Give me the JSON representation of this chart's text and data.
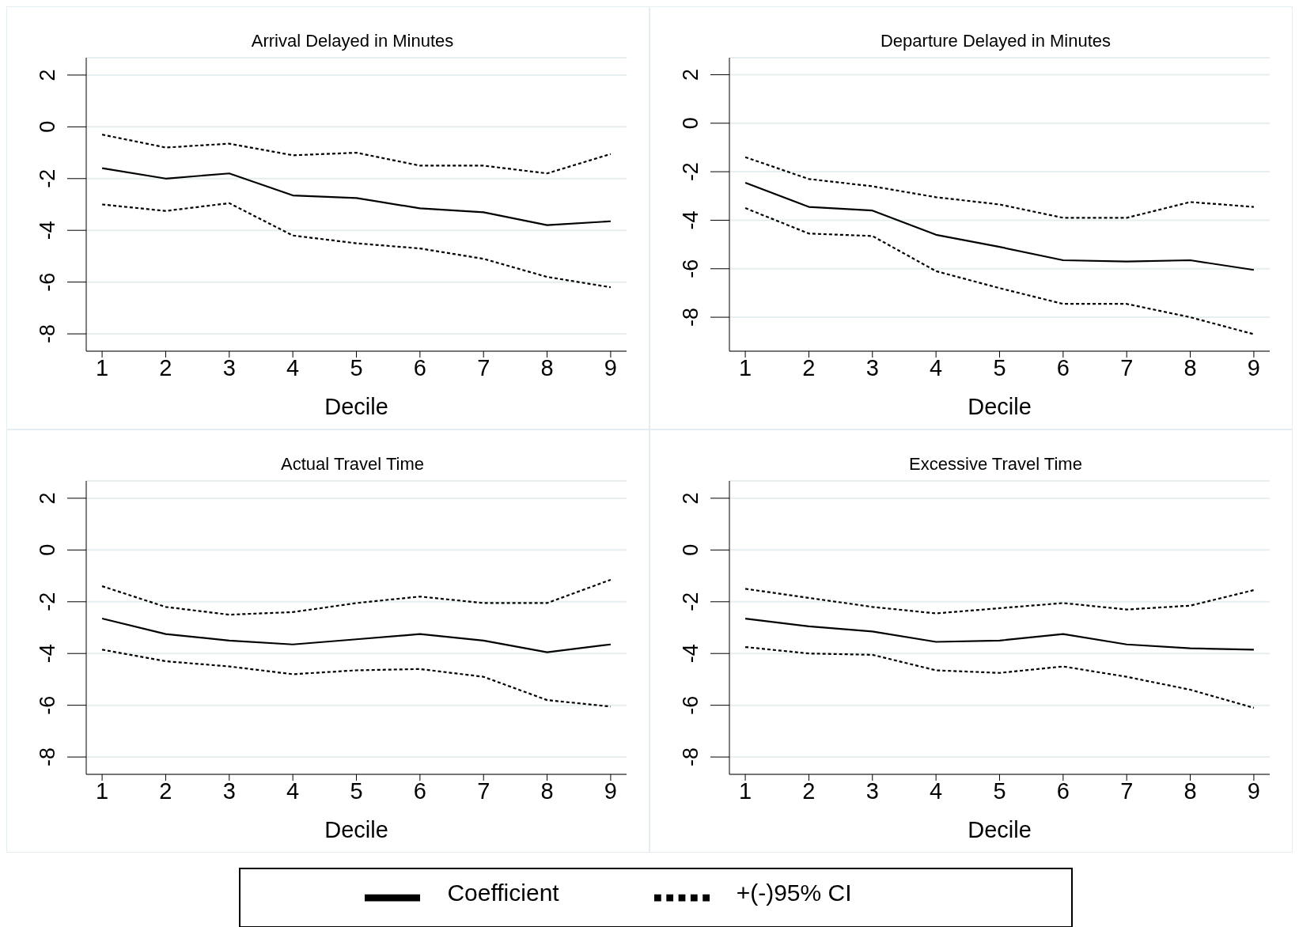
{
  "chart_data": [
    {
      "type": "line",
      "title": "Arrival Delayed in Minutes",
      "xlabel": "Decile",
      "x": [
        1,
        2,
        3,
        4,
        5,
        6,
        7,
        8,
        9
      ],
      "xlim": [
        0.75,
        9.25
      ],
      "xticks": [
        1,
        2,
        3,
        4,
        5,
        6,
        7,
        8,
        9
      ],
      "ylim": [
        -8.67,
        2.67
      ],
      "yticks": [
        2,
        0,
        -2,
        -4,
        -6,
        -8
      ],
      "grid": "y",
      "legend": "bottom",
      "series": [
        {
          "name": "Coefficient",
          "color": "#000000",
          "line_style": "solid",
          "values": [
            -1.6,
            -2.0,
            -1.8,
            -2.65,
            -2.75,
            -3.15,
            -3.3,
            -3.8,
            -3.65
          ]
        },
        {
          "name": "+(-)95% CI",
          "color": "#000000",
          "line_style": "dashed",
          "values": [
            -0.3,
            -0.8,
            -0.65,
            -1.1,
            -1.0,
            -1.5,
            -1.5,
            -1.8,
            -1.05
          ]
        },
        {
          "color": "#000000",
          "line_style": "dashed",
          "values": [
            -3.0,
            -3.25,
            -2.95,
            -4.2,
            -4.5,
            -4.7,
            -5.1,
            -5.8,
            -6.2
          ]
        }
      ]
    },
    {
      "type": "line",
      "title": "Departure Delayed in Minutes",
      "xlabel": "Decile",
      "x": [
        1,
        2,
        3,
        4,
        5,
        6,
        7,
        8,
        9
      ],
      "xlim": [
        0.75,
        9.25
      ],
      "xticks": [
        1,
        2,
        3,
        4,
        5,
        6,
        7,
        8,
        9
      ],
      "ylim": [
        -9.4,
        2.7
      ],
      "yticks": [
        2,
        0,
        -2,
        -4,
        -6,
        -8
      ],
      "grid": "y",
      "series": [
        {
          "color": "#000000",
          "line_style": "solid",
          "values": [
            -2.45,
            -3.45,
            -3.6,
            -4.6,
            -5.1,
            -5.65,
            -5.7,
            -5.65,
            -6.05
          ]
        },
        {
          "color": "#000000",
          "line_style": "dashed",
          "values": [
            -1.4,
            -2.3,
            -2.6,
            -3.05,
            -3.35,
            -3.9,
            -3.9,
            -3.25,
            -3.45
          ]
        },
        {
          "color": "#000000",
          "line_style": "dashed",
          "values": [
            -3.5,
            -4.55,
            -4.65,
            -6.1,
            -6.8,
            -7.45,
            -7.45,
            -8.0,
            -8.7
          ]
        }
      ]
    },
    {
      "type": "line",
      "title": "Actual Travel Time",
      "xlabel": "Decile",
      "x": [
        1,
        2,
        3,
        4,
        5,
        6,
        7,
        8,
        9
      ],
      "xlim": [
        0.75,
        9.25
      ],
      "xticks": [
        1,
        2,
        3,
        4,
        5,
        6,
        7,
        8,
        9
      ],
      "ylim": [
        -8.67,
        2.67
      ],
      "yticks": [
        2,
        0,
        -2,
        -4,
        -6,
        -8
      ],
      "grid": "y",
      "series": [
        {
          "color": "#000000",
          "line_style": "solid",
          "values": [
            -2.65,
            -3.25,
            -3.5,
            -3.65,
            -3.45,
            -3.25,
            -3.5,
            -3.95,
            -3.65
          ]
        },
        {
          "color": "#000000",
          "line_style": "dashed",
          "values": [
            -1.4,
            -2.2,
            -2.5,
            -2.4,
            -2.05,
            -1.8,
            -2.05,
            -2.05,
            -1.15
          ]
        },
        {
          "color": "#000000",
          "line_style": "dashed",
          "values": [
            -3.85,
            -4.3,
            -4.5,
            -4.8,
            -4.65,
            -4.6,
            -4.9,
            -5.8,
            -6.05
          ]
        }
      ]
    },
    {
      "type": "line",
      "title": "Excessive Travel Time",
      "xlabel": "Decile",
      "x": [
        1,
        2,
        3,
        4,
        5,
        6,
        7,
        8,
        9
      ],
      "xlim": [
        0.75,
        9.25
      ],
      "xticks": [
        1,
        2,
        3,
        4,
        5,
        6,
        7,
        8,
        9
      ],
      "ylim": [
        -8.67,
        2.67
      ],
      "yticks": [
        2,
        0,
        -2,
        -4,
        -6,
        -8
      ],
      "grid": "y",
      "series": [
        {
          "color": "#000000",
          "line_style": "solid",
          "values": [
            -2.65,
            -2.95,
            -3.15,
            -3.55,
            -3.5,
            -3.25,
            -3.65,
            -3.8,
            -3.85
          ]
        },
        {
          "color": "#000000",
          "line_style": "dashed",
          "values": [
            -1.5,
            -1.85,
            -2.2,
            -2.45,
            -2.25,
            -2.05,
            -2.3,
            -2.15,
            -1.55
          ]
        },
        {
          "color": "#000000",
          "line_style": "dashed",
          "values": [
            -3.75,
            -4.0,
            -4.05,
            -4.65,
            -4.75,
            -4.5,
            -4.9,
            -5.4,
            -6.1
          ]
        }
      ]
    }
  ]
}
